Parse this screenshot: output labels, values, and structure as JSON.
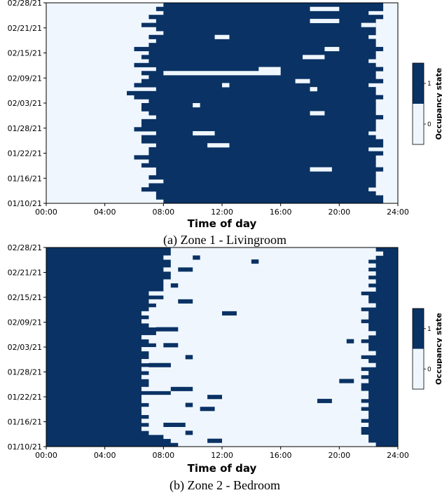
{
  "colors": {
    "occupied": "#0a3264",
    "vacant": "#eff6fd",
    "axis": "#000000"
  },
  "chart_data": [
    {
      "type": "heatmap",
      "caption": "(a)  Zone 1 - Livingroom",
      "xlabel": "Time of day",
      "ylabel": "",
      "colorbar_label": "Occupancy state",
      "colorbar_ticks": [
        "0",
        "1"
      ],
      "x_ticks": [
        "00:00",
        "04:00",
        "08:00",
        "12:00",
        "16:00",
        "20:00",
        "24:00"
      ],
      "y_ticks": [
        "01/10/21",
        "01/16/21",
        "01/22/21",
        "01/28/21",
        "02/03/21",
        "02/09/21",
        "02/15/21",
        "02/21/21",
        "02/28/21"
      ],
      "x_range_hours": [
        0,
        24
      ],
      "days": 50,
      "value_range": [
        0,
        1
      ],
      "cell_minutes": 30,
      "default_state": 0,
      "occupied_intervals_hours": [
        [
          [
            8.0,
            23.0
          ]
        ],
        [
          [
            7.5,
            23.0
          ]
        ],
        [
          [
            7.5,
            22.5
          ]
        ],
        [
          [
            6.5,
            22.0
          ]
        ],
        [
          [
            7.0,
            22.5
          ]
        ],
        [
          [
            8.0,
            22.5
          ]
        ],
        [
          [
            7.0,
            22.5
          ]
        ],
        [
          [
            7.5,
            22.5
          ]
        ],
        [
          [
            7.5,
            23.0
          ]
        ],
        [
          [
            6.5,
            22.5
          ]
        ],
        [
          [
            7.0,
            22.5
          ]
        ],
        [
          [
            6.0,
            22.5
          ]
        ],
        [
          [
            7.0,
            23.0
          ]
        ],
        [
          [
            7.0,
            22.0
          ]
        ],
        [
          [
            7.5,
            23.0
          ]
        ],
        [
          [
            6.5,
            23.0
          ]
        ],
        [
          [
            6.5,
            22.5
          ]
        ],
        [
          [
            7.5,
            22.0
          ]
        ],
        [
          [
            6.0,
            22.5
          ]
        ],
        [
          [
            6.5,
            22.5
          ]
        ],
        [
          [
            6.5,
            22.5
          ]
        ],
        [
          [
            7.5,
            23.0
          ]
        ],
        [
          [
            7.0,
            22.5
          ]
        ],
        [
          [
            6.5,
            22.5
          ]
        ],
        [
          [
            6.5,
            22.5
          ]
        ],
        [
          [
            7.0,
            22.5
          ]
        ],
        [
          [
            6.0,
            23.0
          ]
        ],
        [
          [
            5.5,
            22.5
          ]
        ],
        [
          [
            7.5,
            22.5
          ]
        ],
        [
          [
            6.0,
            22.0
          ]
        ],
        [
          [
            6.5,
            23.0
          ]
        ],
        [
          [
            7.0,
            22.5
          ]
        ],
        [
          [
            6.5,
            22.5
          ]
        ],
        [
          [
            7.5,
            23.0
          ]
        ],
        [
          [
            6.0,
            22.5
          ]
        ],
        [
          [
            7.0,
            22.0
          ]
        ],
        [
          [
            6.5,
            22.5
          ]
        ],
        [
          [
            7.0,
            22.5
          ]
        ],
        [
          [
            6.0,
            23.0
          ]
        ],
        [
          [
            7.0,
            22.5
          ]
        ],
        [
          [
            7.5,
            22.5
          ]
        ],
        [
          [
            7.0,
            22.0
          ]
        ],
        [
          [
            8.0,
            22.5
          ]
        ],
        [
          [
            7.5,
            22.5
          ]
        ],
        [
          [
            6.5,
            22.5
          ]
        ],
        [
          [
            7.5,
            22.5
          ]
        ],
        [
          [
            7.0,
            23.0
          ]
        ],
        [
          [
            8.0,
            22.0
          ]
        ],
        [
          [
            7.5,
            23.0
          ]
        ],
        [
          [
            8.0,
            23.0
          ]
        ]
      ],
      "vacant_breaks_hours": [
        [
          8,
          18.0,
          19.5
        ],
        [
          14,
          11.0,
          12.5
        ],
        [
          17,
          10.0,
          11.5
        ],
        [
          22,
          18.0,
          19.0
        ],
        [
          24,
          10.0,
          10.5
        ],
        [
          28,
          18.0,
          18.5
        ],
        [
          29,
          12.0,
          12.5
        ],
        [
          32,
          8.0,
          16.0
        ],
        [
          33,
          14.5,
          16.0
        ],
        [
          36,
          17.5,
          19.0
        ],
        [
          41,
          11.5,
          12.5
        ],
        [
          45,
          18.0,
          20.0
        ],
        [
          48,
          18.0,
          20.0
        ],
        [
          44,
          21.5,
          22.5
        ],
        [
          30,
          17.0,
          18.0
        ],
        [
          38,
          19.0,
          20.0
        ]
      ]
    },
    {
      "type": "heatmap",
      "caption": "(b)  Zone 2 - Bedroom",
      "xlabel": "Time of day",
      "ylabel": "",
      "colorbar_label": "Occupancy state",
      "colorbar_ticks": [
        "0",
        "1"
      ],
      "x_ticks": [
        "00:00",
        "04:00",
        "08:00",
        "12:00",
        "16:00",
        "20:00",
        "24:00"
      ],
      "y_ticks": [
        "01/10/21",
        "01/16/21",
        "01/22/21",
        "01/28/21",
        "02/03/21",
        "02/09/21",
        "02/15/21",
        "02/21/21",
        "02/28/21"
      ],
      "x_range_hours": [
        0,
        24
      ],
      "days": 50,
      "value_range": [
        0,
        1
      ],
      "cell_minutes": 30,
      "default_state": 1,
      "vacant_intervals_hours": [
        [
          [
            9.0,
            22.5
          ]
        ],
        [
          [
            8.5,
            22.0
          ]
        ],
        [
          [
            8.0,
            22.0
          ]
        ],
        [
          [
            7.0,
            21.5
          ]
        ],
        [
          [
            6.5,
            21.5
          ]
        ],
        [
          [
            7.0,
            22.0
          ]
        ],
        [
          [
            6.5,
            21.5
          ]
        ],
        [
          [
            7.0,
            22.0
          ]
        ],
        [
          [
            6.5,
            22.0
          ]
        ],
        [
          [
            6.5,
            21.5
          ]
        ],
        [
          [
            7.0,
            22.0
          ]
        ],
        [
          [
            6.5,
            21.5
          ]
        ],
        [
          [
            6.5,
            22.0
          ]
        ],
        [
          [
            8.5,
            22.0
          ]
        ],
        [
          [
            6.5,
            21.5
          ]
        ],
        [
          [
            7.0,
            21.5
          ]
        ],
        [
          [
            7.0,
            22.0
          ]
        ],
        [
          [
            6.5,
            21.5
          ]
        ],
        [
          [
            7.0,
            22.0
          ]
        ],
        [
          [
            6.5,
            21.5
          ]
        ],
        [
          [
            8.5,
            22.5
          ]
        ],
        [
          [
            6.5,
            22.0
          ]
        ],
        [
          [
            7.0,
            21.5
          ]
        ],
        [
          [
            7.0,
            22.5
          ]
        ],
        [
          [
            6.5,
            22.0
          ]
        ],
        [
          [
            7.5,
            22.0
          ]
        ],
        [
          [
            7.0,
            21.5
          ]
        ],
        [
          [
            6.5,
            22.0
          ]
        ],
        [
          [
            7.5,
            22.5
          ]
        ],
        [
          [
            8.5,
            22.0
          ]
        ],
        [
          [
            7.0,
            22.0
          ]
        ],
        [
          [
            6.5,
            21.5
          ]
        ],
        [
          [
            7.0,
            22.0
          ]
        ],
        [
          [
            6.5,
            22.0
          ]
        ],
        [
          [
            7.0,
            21.5
          ]
        ],
        [
          [
            7.5,
            22.5
          ]
        ],
        [
          [
            7.0,
            22.0
          ]
        ],
        [
          [
            8.0,
            22.0
          ]
        ],
        [
          [
            7.0,
            21.5
          ]
        ],
        [
          [
            8.0,
            22.5
          ]
        ],
        [
          [
            8.0,
            22.0
          ]
        ],
        [
          [
            8.0,
            22.5
          ]
        ],
        [
          [
            8.5,
            22.0
          ]
        ],
        [
          [
            8.5,
            22.5
          ]
        ],
        [
          [
            8.0,
            22.0
          ]
        ],
        [
          [
            8.5,
            22.5
          ]
        ],
        [
          [
            8.5,
            22.0
          ]
        ],
        [
          [
            8.0,
            22.5
          ]
        ],
        [
          [
            8.5,
            23.0
          ]
        ],
        [
          [
            8.5,
            22.5
          ]
        ]
      ],
      "occupied_blips_hours": [
        [
          1,
          11.0,
          12.0
        ],
        [
          3,
          9.5,
          10.0
        ],
        [
          5,
          8.0,
          9.5
        ],
        [
          9,
          10.5,
          11.5
        ],
        [
          10,
          9.5,
          10.0
        ],
        [
          12,
          11.0,
          12.0
        ],
        [
          14,
          8.5,
          10.0
        ],
        [
          20,
          7.0,
          8.5
        ],
        [
          22,
          9.5,
          10.0
        ],
        [
          25,
          8.0,
          9.0
        ],
        [
          29,
          7.5,
          9.0
        ],
        [
          33,
          12.0,
          13.0
        ],
        [
          36,
          9.0,
          10.0
        ],
        [
          40,
          8.5,
          9.0
        ],
        [
          44,
          9.0,
          10.0
        ],
        [
          46,
          14.0,
          14.5
        ],
        [
          47,
          10.0,
          10.5
        ],
        [
          11,
          18.5,
          19.5
        ],
        [
          16,
          20.0,
          21.0
        ],
        [
          26,
          20.5,
          21.0
        ]
      ]
    }
  ]
}
